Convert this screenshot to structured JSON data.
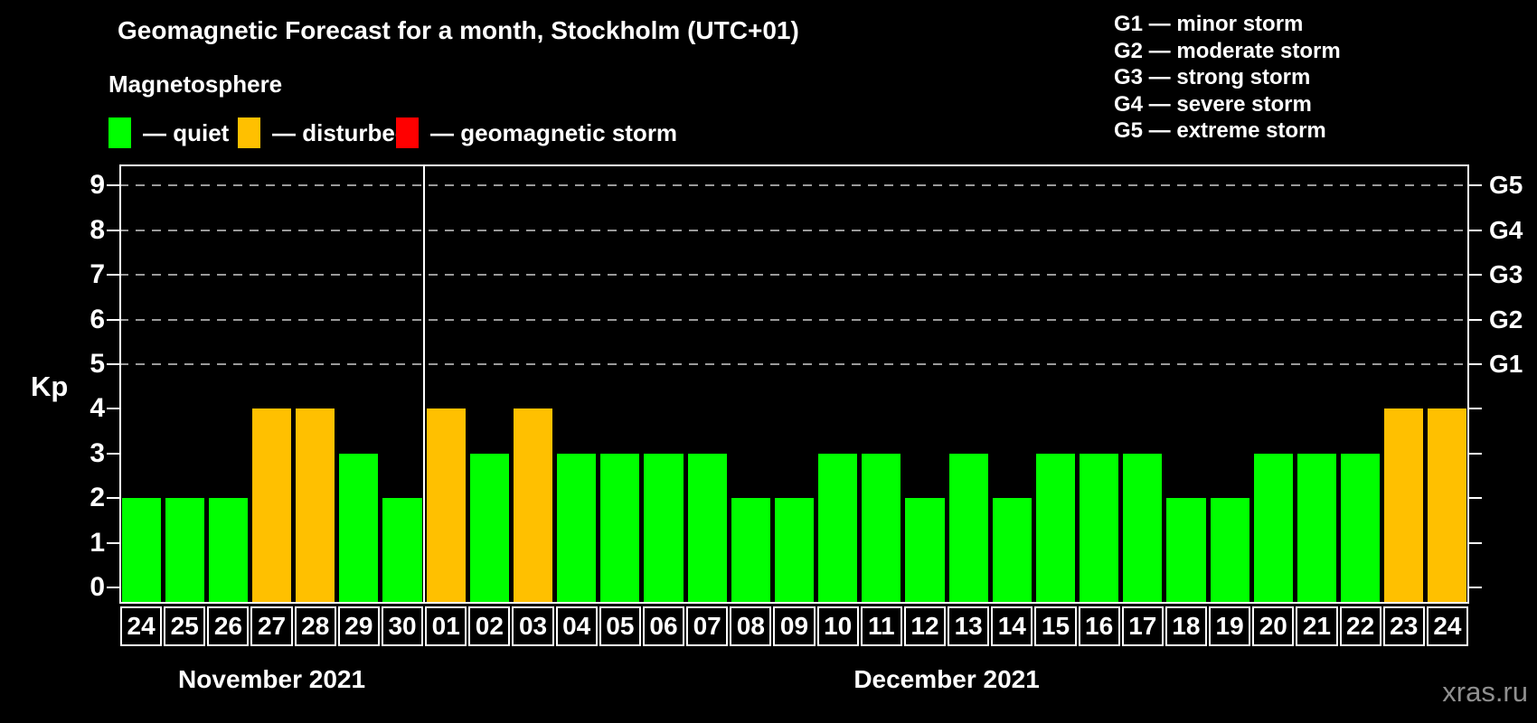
{
  "title": "Geomagnetic Forecast for a month, Stockholm (UTC+01)",
  "subtitle": "Magnetosphere",
  "legend": [
    {
      "key": "quiet",
      "label": "— quiet",
      "color": "#00ff00"
    },
    {
      "key": "disturbed",
      "label": "— disturbed",
      "color": "#ffc000"
    },
    {
      "key": "storm",
      "label": "— geomagnetic storm",
      "color": "#ff0000"
    }
  ],
  "storm_scale": [
    "G1 — minor storm",
    "G2 — moderate storm",
    "G3 — strong storm",
    "G4 — severe storm",
    "G5 — extreme storm"
  ],
  "watermark": "xras.ru",
  "chart_data": {
    "type": "bar",
    "title": "Geomagnetic Forecast for a month, Stockholm (UTC+01)",
    "ylabel": "Kp",
    "ylim": [
      0,
      9
    ],
    "y_ticks": [
      0,
      1,
      2,
      3,
      4,
      5,
      6,
      7,
      8,
      9
    ],
    "gridlines_kp": [
      5,
      6,
      7,
      8,
      9
    ],
    "grid": "dashed-horizontal-at-storm-levels",
    "legend_position": "top-left",
    "right_axis_labels": [
      {
        "kp": 5,
        "label": "G1"
      },
      {
        "kp": 6,
        "label": "G2"
      },
      {
        "kp": 7,
        "label": "G3"
      },
      {
        "kp": 8,
        "label": "G4"
      },
      {
        "kp": 9,
        "label": "G5"
      }
    ],
    "months": [
      {
        "label": "November 2021",
        "days": 7
      },
      {
        "label": "December 2021",
        "days": 24
      }
    ],
    "categories": [
      "24",
      "25",
      "26",
      "27",
      "28",
      "29",
      "30",
      "01",
      "02",
      "03",
      "04",
      "05",
      "06",
      "07",
      "08",
      "09",
      "10",
      "11",
      "12",
      "13",
      "14",
      "15",
      "16",
      "17",
      "18",
      "19",
      "20",
      "21",
      "22",
      "23",
      "24"
    ],
    "values": [
      2,
      2,
      2,
      4,
      4,
      3,
      2,
      4,
      3,
      4,
      3,
      3,
      3,
      3,
      2,
      2,
      3,
      3,
      2,
      3,
      2,
      3,
      3,
      3,
      2,
      2,
      3,
      3,
      3,
      4,
      4
    ],
    "status": [
      "quiet",
      "quiet",
      "quiet",
      "disturbed",
      "disturbed",
      "quiet",
      "quiet",
      "disturbed",
      "quiet",
      "disturbed",
      "quiet",
      "quiet",
      "quiet",
      "quiet",
      "quiet",
      "quiet",
      "quiet",
      "quiet",
      "quiet",
      "quiet",
      "quiet",
      "quiet",
      "quiet",
      "quiet",
      "quiet",
      "quiet",
      "quiet",
      "quiet",
      "quiet",
      "disturbed",
      "disturbed"
    ],
    "colors": {
      "quiet": "#00ff00",
      "disturbed": "#ffc000",
      "storm": "#ff0000"
    }
  }
}
